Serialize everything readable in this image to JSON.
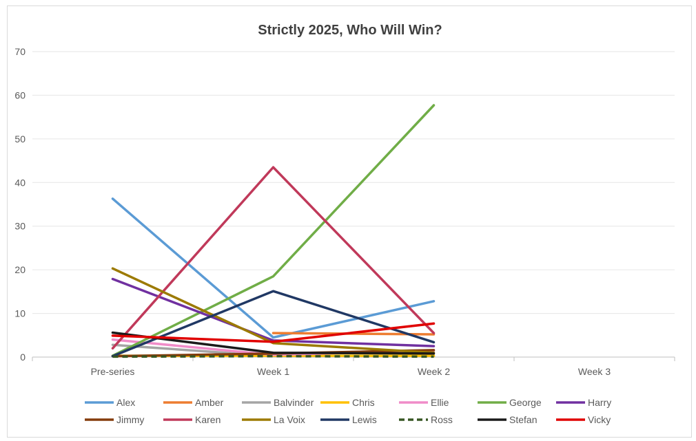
{
  "chart_data": {
    "type": "line",
    "title": "Strictly 2025, Who Will Win?",
    "xlabel": "",
    "ylabel": "",
    "categories": [
      "Pre-series",
      "Week 1",
      "Week 2",
      "Week 3"
    ],
    "ylim": [
      0,
      70
    ],
    "yticks": [
      0,
      10,
      20,
      30,
      40,
      50,
      60,
      70
    ],
    "grid": true,
    "legend_position": "bottom",
    "series": [
      {
        "name": "Alex",
        "color": "#5B9BD5",
        "dash": false,
        "values": [
          36.3,
          4.5,
          12.8,
          null
        ]
      },
      {
        "name": "Amber",
        "color": "#ED7D31",
        "dash": false,
        "values": [
          null,
          5.5,
          5.2,
          null
        ]
      },
      {
        "name": "Balvinder",
        "color": "#A5A5A5",
        "dash": false,
        "values": [
          2.8,
          0.2,
          0.2,
          null
        ]
      },
      {
        "name": "Chris",
        "color": "#FFC000",
        "dash": false,
        "values": [
          0.3,
          0.3,
          0.3,
          null
        ]
      },
      {
        "name": "Ellie",
        "color": "#F08CC8",
        "dash": false,
        "values": [
          4.0,
          0.5,
          1.5,
          null
        ]
      },
      {
        "name": "George",
        "color": "#70AD47",
        "dash": false,
        "values": [
          0.3,
          18.5,
          57.7,
          null
        ]
      },
      {
        "name": "Harry",
        "color": "#7030A0",
        "dash": false,
        "values": [
          17.9,
          3.8,
          2.5,
          null
        ]
      },
      {
        "name": "Jimmy",
        "color": "#843C0C",
        "dash": false,
        "values": [
          0.2,
          0.8,
          1.6,
          null
        ]
      },
      {
        "name": "Karen",
        "color": "#C0395A",
        "dash": false,
        "values": [
          2.0,
          43.5,
          5.5,
          null
        ]
      },
      {
        "name": "La Voix",
        "color": "#9C7A00",
        "dash": false,
        "values": [
          20.3,
          3.2,
          1.0,
          null
        ]
      },
      {
        "name": "Lewis",
        "color": "#203864",
        "dash": false,
        "values": [
          0.2,
          15.1,
          3.4,
          null
        ]
      },
      {
        "name": "Ross",
        "color": "#375623",
        "dash": true,
        "values": [
          0.1,
          0.2,
          0.1,
          null
        ]
      },
      {
        "name": "Stefan",
        "color": "#1A1A1A",
        "dash": false,
        "values": [
          5.6,
          1.0,
          0.8,
          null
        ]
      },
      {
        "name": "Vicky",
        "color": "#E00000",
        "dash": false,
        "values": [
          4.9,
          3.5,
          7.7,
          null
        ]
      }
    ]
  }
}
